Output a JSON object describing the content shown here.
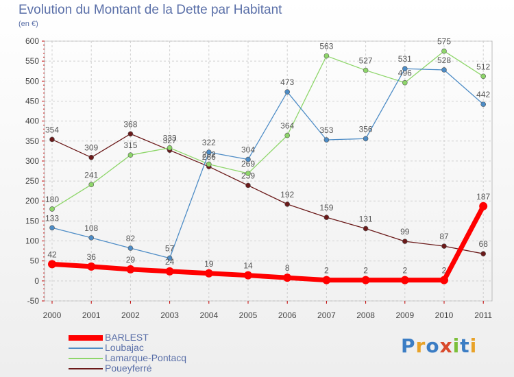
{
  "header": {
    "title": "Evolution du Montant de la Dette par Habitant",
    "unit": "(en €)"
  },
  "logo": {
    "text": "Proxiti",
    "colors": [
      "#3b7dc4",
      "#e8a228",
      "#3b7dc4",
      "#d94a2c",
      "#7cbf3a",
      "#3b7dc4",
      "#e8a228"
    ]
  },
  "chart_data": {
    "type": "line",
    "x": [
      "2000",
      "2001",
      "2002",
      "2003",
      "2004",
      "2005",
      "2006",
      "2007",
      "2008",
      "2009",
      "2010",
      "2011"
    ],
    "ylim": [
      -50,
      600
    ],
    "yticks": [
      -50,
      0,
      50,
      100,
      150,
      200,
      250,
      300,
      350,
      400,
      450,
      500,
      550,
      600
    ],
    "grid": true,
    "legend_position": "bottom-left",
    "series": [
      {
        "name": "Poueyferré",
        "color": "#6b1a1a",
        "values": [
          354,
          309,
          368,
          327,
          286,
          239,
          192,
          159,
          131,
          99,
          87,
          68
        ]
      },
      {
        "name": "Lamarque-Pontacq",
        "color": "#8ed66a",
        "values": [
          180,
          241,
          315,
          333,
          292,
          269,
          364,
          563,
          527,
          496,
          575,
          512
        ]
      },
      {
        "name": "Loubajac",
        "color": "#4d8cc6",
        "values": [
          133,
          108,
          82,
          57,
          322,
          304,
          473,
          353,
          356,
          531,
          528,
          442
        ]
      },
      {
        "name": "BARLEST",
        "color": "#ff0000",
        "values": [
          42,
          36,
          29,
          24,
          19,
          14,
          8,
          2,
          2,
          2,
          2,
          187
        ]
      }
    ]
  }
}
